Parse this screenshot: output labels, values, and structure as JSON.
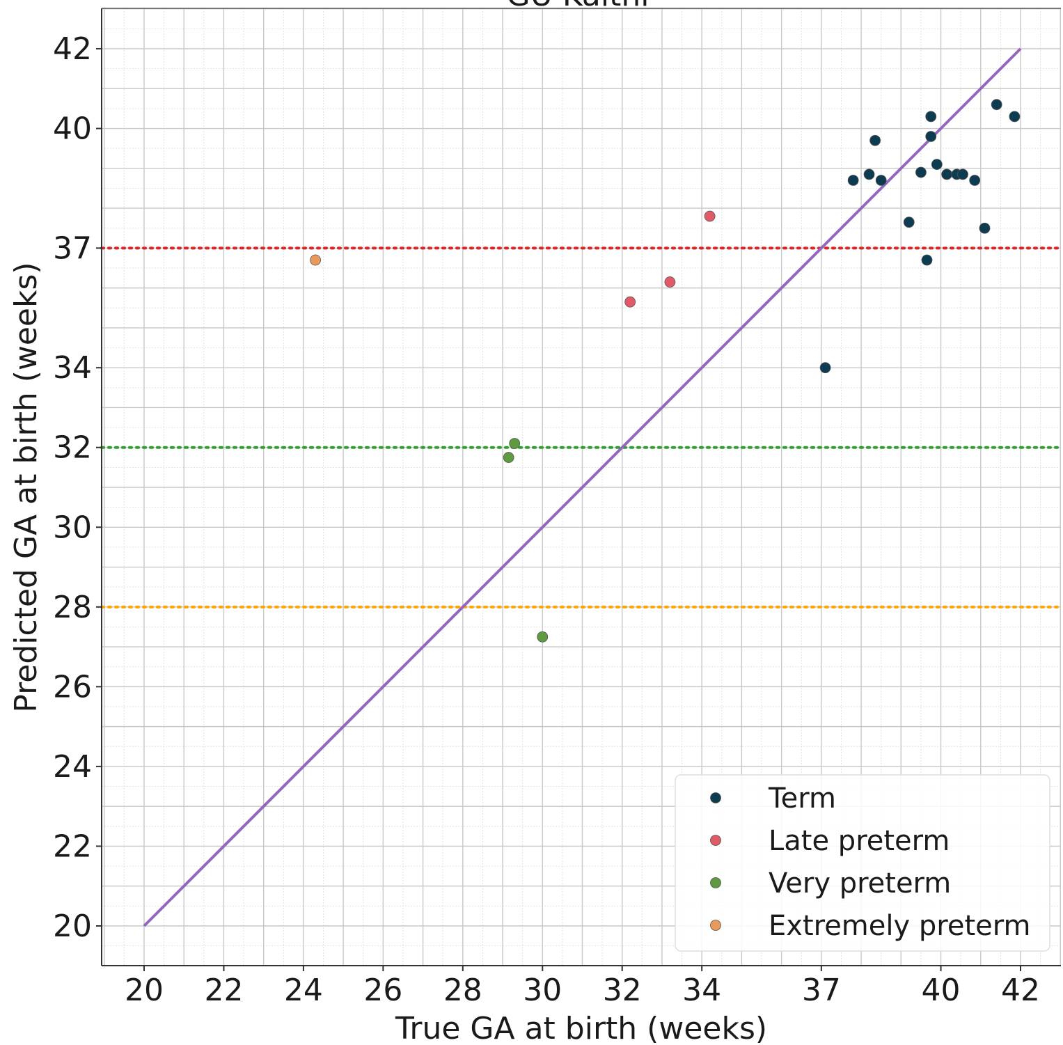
{
  "chart_data": {
    "type": "scatter",
    "title": "GU Kaithi",
    "xlabel": "True GA at birth (weeks)",
    "ylabel": "Predicted GA at birth (weeks)",
    "xlim": [
      18.95,
      43.0
    ],
    "ylim": [
      19.0,
      43.0
    ],
    "xticks": [
      20,
      22,
      24,
      26,
      28,
      30,
      32,
      34,
      37,
      40,
      42
    ],
    "yticks": [
      20,
      22,
      24,
      26,
      28,
      30,
      32,
      34,
      37,
      40,
      42
    ],
    "grid": true,
    "minor_grid": true,
    "legend_position": "lower-right",
    "identity_line": {
      "from": [
        20,
        20
      ],
      "to": [
        42,
        42
      ],
      "color": "#9467bd"
    },
    "threshold_lines": [
      {
        "y": 37,
        "color": "#d62728",
        "style": "dotted"
      },
      {
        "y": 32,
        "color": "#2ca02c",
        "style": "dotted"
      },
      {
        "y": 28,
        "color": "#ffa500",
        "style": "dotted"
      }
    ],
    "series": [
      {
        "name": "Term",
        "color": "#0d3b4f",
        "points": [
          [
            37.1,
            34.0
          ],
          [
            37.8,
            38.7
          ],
          [
            38.2,
            38.85
          ],
          [
            38.35,
            39.7
          ],
          [
            38.5,
            38.7
          ],
          [
            39.2,
            37.65
          ],
          [
            39.5,
            38.9
          ],
          [
            39.65,
            36.7
          ],
          [
            39.75,
            40.3
          ],
          [
            39.75,
            39.8
          ],
          [
            39.9,
            39.1
          ],
          [
            40.15,
            38.85
          ],
          [
            40.4,
            38.85
          ],
          [
            40.55,
            38.85
          ],
          [
            40.85,
            38.7
          ],
          [
            41.1,
            37.5
          ],
          [
            41.4,
            40.6
          ],
          [
            41.85,
            40.3
          ]
        ]
      },
      {
        "name": "Late preterm",
        "color": "#e05a68",
        "points": [
          [
            32.2,
            35.65
          ],
          [
            33.2,
            36.15
          ],
          [
            34.2,
            37.8
          ]
        ]
      },
      {
        "name": "Very preterm",
        "color": "#5e9a3f",
        "points": [
          [
            29.15,
            31.75
          ],
          [
            29.3,
            32.1
          ],
          [
            30.0,
            27.25
          ]
        ]
      },
      {
        "name": "Extremely preterm",
        "color": "#e89a5c",
        "points": [
          [
            24.3,
            36.7
          ]
        ]
      }
    ]
  }
}
